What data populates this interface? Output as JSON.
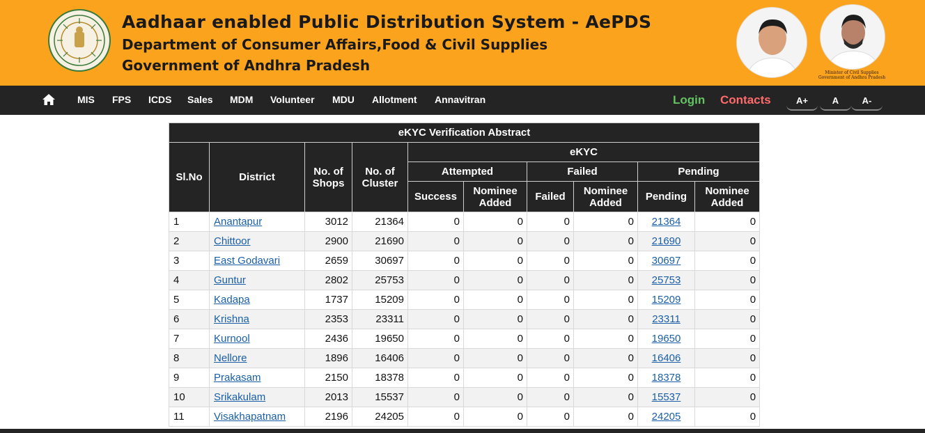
{
  "header": {
    "title": "Aadhaar enabled Public Distribution System - AePDS",
    "department": "Department of Consumer Affairs,Food & Civil Supplies",
    "government": "Government of Andhra Pradesh",
    "minister_caption_line1": "Minister of Civil Supplies",
    "minister_caption_line2": "Government of Andhra Pradesh",
    "background_color": "#fba31d"
  },
  "nav": {
    "items": [
      "MIS",
      "FPS",
      "ICDS",
      "Sales",
      "MDM",
      "Volunteer",
      "MDU",
      "Allotment",
      "Annavitran"
    ],
    "login": "Login",
    "contacts": "Contacts",
    "font_increase": "A+",
    "font_normal": "A",
    "font_decrease": "A-"
  },
  "table": {
    "caption": "eKYC Verification Abstract",
    "headers": {
      "sl_no": "Sl.No",
      "district": "District",
      "shops": "No. of Shops",
      "cluster": "No. of Cluster",
      "ekyc": "eKYC",
      "attempted": "Attempted",
      "failed_group": "Failed",
      "pending_group": "Pending",
      "success": "Success",
      "nominee_added": "Nominee Added",
      "failed": "Failed",
      "pending": "Pending"
    },
    "rows": [
      {
        "sl": "1",
        "district": "Anantapur",
        "shops": "3012",
        "cluster": "21364",
        "success": "0",
        "att_nominee": "0",
        "failed": "0",
        "fail_nominee": "0",
        "pending": "21364",
        "pend_nominee": "0"
      },
      {
        "sl": "2",
        "district": "Chittoor",
        "shops": "2900",
        "cluster": "21690",
        "success": "0",
        "att_nominee": "0",
        "failed": "0",
        "fail_nominee": "0",
        "pending": "21690",
        "pend_nominee": "0"
      },
      {
        "sl": "3",
        "district": "East Godavari",
        "shops": "2659",
        "cluster": "30697",
        "success": "0",
        "att_nominee": "0",
        "failed": "0",
        "fail_nominee": "0",
        "pending": "30697",
        "pend_nominee": "0"
      },
      {
        "sl": "4",
        "district": "Guntur",
        "shops": "2802",
        "cluster": "25753",
        "success": "0",
        "att_nominee": "0",
        "failed": "0",
        "fail_nominee": "0",
        "pending": "25753",
        "pend_nominee": "0"
      },
      {
        "sl": "5",
        "district": "Kadapa",
        "shops": "1737",
        "cluster": "15209",
        "success": "0",
        "att_nominee": "0",
        "failed": "0",
        "fail_nominee": "0",
        "pending": "15209",
        "pend_nominee": "0"
      },
      {
        "sl": "6",
        "district": "Krishna",
        "shops": "2353",
        "cluster": "23311",
        "success": "0",
        "att_nominee": "0",
        "failed": "0",
        "fail_nominee": "0",
        "pending": "23311",
        "pend_nominee": "0"
      },
      {
        "sl": "7",
        "district": "Kurnool",
        "shops": "2436",
        "cluster": "19650",
        "success": "0",
        "att_nominee": "0",
        "failed": "0",
        "fail_nominee": "0",
        "pending": "19650",
        "pend_nominee": "0"
      },
      {
        "sl": "8",
        "district": "Nellore",
        "shops": "1896",
        "cluster": "16406",
        "success": "0",
        "att_nominee": "0",
        "failed": "0",
        "fail_nominee": "0",
        "pending": "16406",
        "pend_nominee": "0"
      },
      {
        "sl": "9",
        "district": "Prakasam",
        "shops": "2150",
        "cluster": "18378",
        "success": "0",
        "att_nominee": "0",
        "failed": "0",
        "fail_nominee": "0",
        "pending": "18378",
        "pend_nominee": "0"
      },
      {
        "sl": "10",
        "district": "Srikakulam",
        "shops": "2013",
        "cluster": "15537",
        "success": "0",
        "att_nominee": "0",
        "failed": "0",
        "fail_nominee": "0",
        "pending": "15537",
        "pend_nominee": "0"
      },
      {
        "sl": "11",
        "district": "Visakhapatnam",
        "shops": "2196",
        "cluster": "24205",
        "success": "0",
        "att_nominee": "0",
        "failed": "0",
        "fail_nominee": "0",
        "pending": "24205",
        "pend_nominee": "0"
      }
    ]
  }
}
